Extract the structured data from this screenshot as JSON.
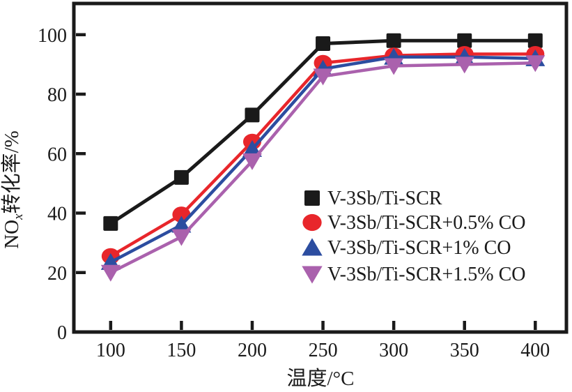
{
  "chart_data": {
    "type": "line",
    "title": "",
    "xlabel": "温度/°C",
    "ylabel": "NOx转化率/%",
    "ylabel_parts": {
      "prefix": "NO",
      "subscript": "x",
      "suffix": "转化率/%"
    },
    "x": [
      100,
      150,
      200,
      250,
      300,
      350,
      400
    ],
    "xticks": [
      100,
      150,
      200,
      250,
      300,
      350,
      400
    ],
    "yticks": [
      0,
      20,
      40,
      60,
      80,
      100
    ],
    "xlim": [
      74,
      422
    ],
    "ylim": [
      0,
      110.5
    ],
    "grid": false,
    "legend_position": "inside-right",
    "frame_color": "#1a1a1a",
    "series": [
      {
        "name": "V-3Sb/Ti-SCR",
        "marker": "square",
        "color": "#1a1a1a",
        "values": [
          36.5,
          52,
          73,
          97,
          98,
          98,
          98
        ]
      },
      {
        "name": "V-3Sb/Ti-SCR+0.5% CO",
        "marker": "circle",
        "color": "#e8262b",
        "values": [
          25.5,
          39.5,
          64,
          90.5,
          93,
          93.5,
          93.5
        ]
      },
      {
        "name": "V-3Sb/Ti-SCR+1% CO",
        "marker": "triangle-up",
        "color": "#2c4da0",
        "values": [
          23.5,
          36,
          61.5,
          88.5,
          92.5,
          92.5,
          92
        ]
      },
      {
        "name": "V-3Sb/Ti-SCR+1.5% CO",
        "marker": "triangle-down",
        "color": "#aa61ad",
        "values": [
          20,
          32,
          57.5,
          86,
          89.5,
          90,
          90.5
        ]
      }
    ]
  }
}
